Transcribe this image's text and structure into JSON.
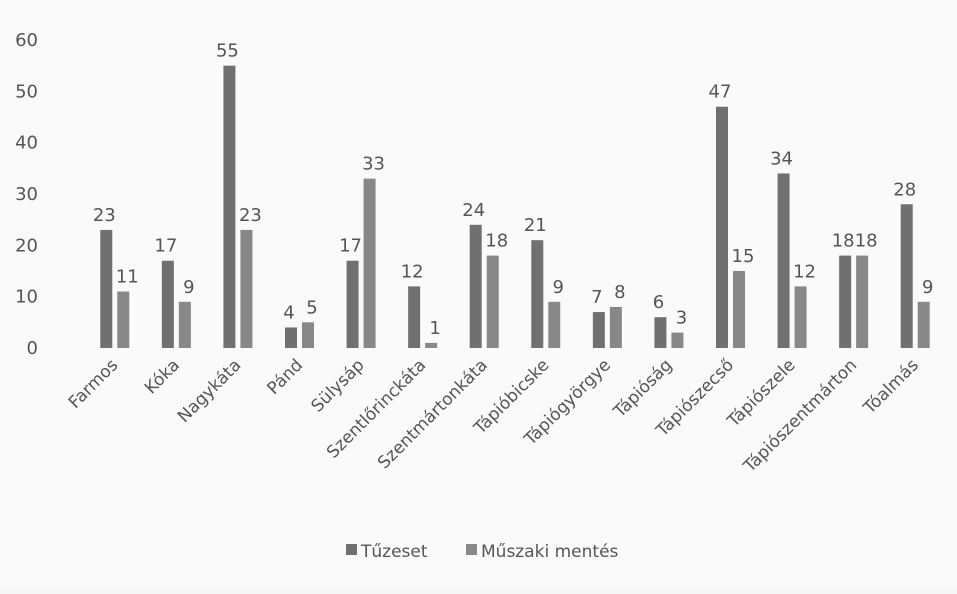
{
  "chart_data": {
    "type": "bar",
    "categories": [
      "Farmos",
      "Kóka",
      "Nagykáta",
      "Pánd",
      "Sülysáp",
      "Szentlőrinckáta",
      "Szentmártonkáta",
      "Tápióbicske",
      "Tápiógyörgye",
      "Tápióság",
      "Tápiószecső",
      "Tápiószele",
      "Tápiószentmárton",
      "Tóalmás"
    ],
    "series": [
      {
        "name": "Tűzeset",
        "values": [
          23,
          17,
          55,
          4,
          17,
          12,
          24,
          21,
          7,
          6,
          47,
          34,
          18,
          28
        ],
        "color": "#707070"
      },
      {
        "name": "Műszaki mentés",
        "values": [
          11,
          9,
          23,
          5,
          33,
          1,
          18,
          9,
          8,
          3,
          15,
          12,
          18,
          9
        ],
        "color": "#888888"
      }
    ],
    "yticks": [
      "0",
      "10",
      "20",
      "30",
      "40",
      "50",
      "60"
    ],
    "ylim": [
      0,
      60
    ],
    "grid": false,
    "legend_position": "bottom"
  }
}
